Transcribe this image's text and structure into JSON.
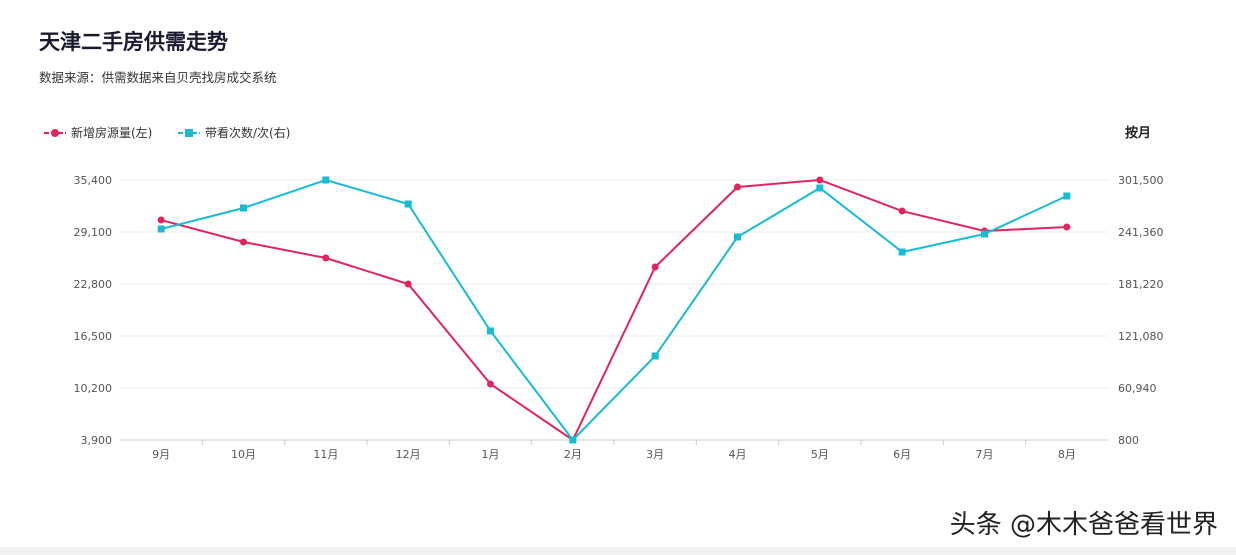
{
  "title": "天津二手房供需走势",
  "subtitle": "数据来源：供需数据来自贝壳找房成交系统",
  "period_label": "按月",
  "watermark": "头条 @木木爸爸看世界",
  "colors": {
    "supply": "#e0245e",
    "visits": "#17bcd3"
  },
  "chart_data": {
    "type": "line",
    "title": "天津二手房供需走势",
    "categories": [
      "9月",
      "10月",
      "11月",
      "12月",
      "1月",
      "2月",
      "3月",
      "4月",
      "5月",
      "6月",
      "7月",
      "8月"
    ],
    "series": [
      {
        "name": "新增房源量(左)",
        "axis": "left",
        "marker": "circle",
        "values": [
          30550,
          27890,
          25950,
          22800,
          10680,
          3900,
          24860,
          34550,
          35400,
          31640,
          29220,
          29710
        ]
      },
      {
        "name": "带看次数/次(右)",
        "axis": "right",
        "marker": "square",
        "values": [
          244830,
          269120,
          301500,
          273740,
          126870,
          800,
          97960,
          235580,
          292250,
          218230,
          239050,
          283000
        ]
      }
    ],
    "left_axis": {
      "ylim": [
        3900,
        35400
      ],
      "ticks": [
        "35,400",
        "29,100",
        "22,800",
        "16,500",
        "10,200",
        "3,900"
      ]
    },
    "right_axis": {
      "ylim": [
        800,
        301500
      ],
      "ticks": [
        "301,500",
        "241,360",
        "181,220",
        "121,080",
        "60,940",
        "800"
      ]
    },
    "grid": true,
    "legend": "top-left"
  }
}
